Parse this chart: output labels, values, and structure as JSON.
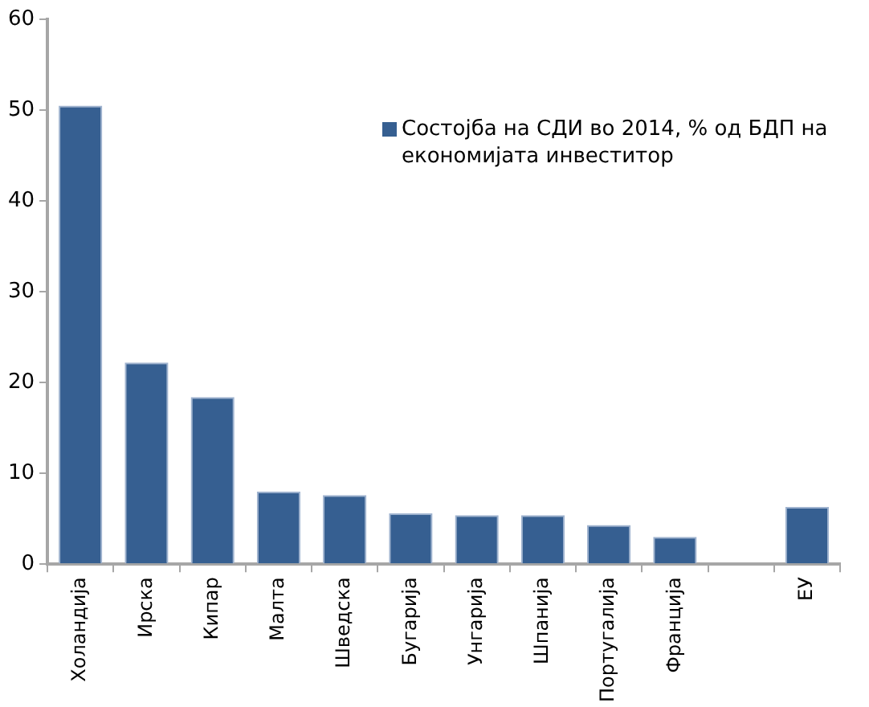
{
  "chart_data": {
    "type": "bar",
    "categories": [
      "Холандија",
      "Ирска",
      "Кипар",
      "Малта",
      "Шведска",
      "Бугарија",
      "Унгарија",
      "Шпанија",
      "Португалија",
      "Франција",
      null,
      "ЕУ"
    ],
    "series": [
      {
        "name": "Состојба на СДИ во 2014, % од БДП на економијата инвеститор",
        "color": "#365f91",
        "values": [
          50.5,
          22.2,
          18.4,
          8.0,
          7.6,
          5.6,
          5.4,
          5.4,
          4.3,
          3.0,
          null,
          6.3
        ]
      }
    ],
    "ylim": [
      0,
      60
    ],
    "yticks": [
      0,
      10,
      20,
      30,
      40,
      50,
      60
    ],
    "grid": false,
    "legend": "top right"
  }
}
